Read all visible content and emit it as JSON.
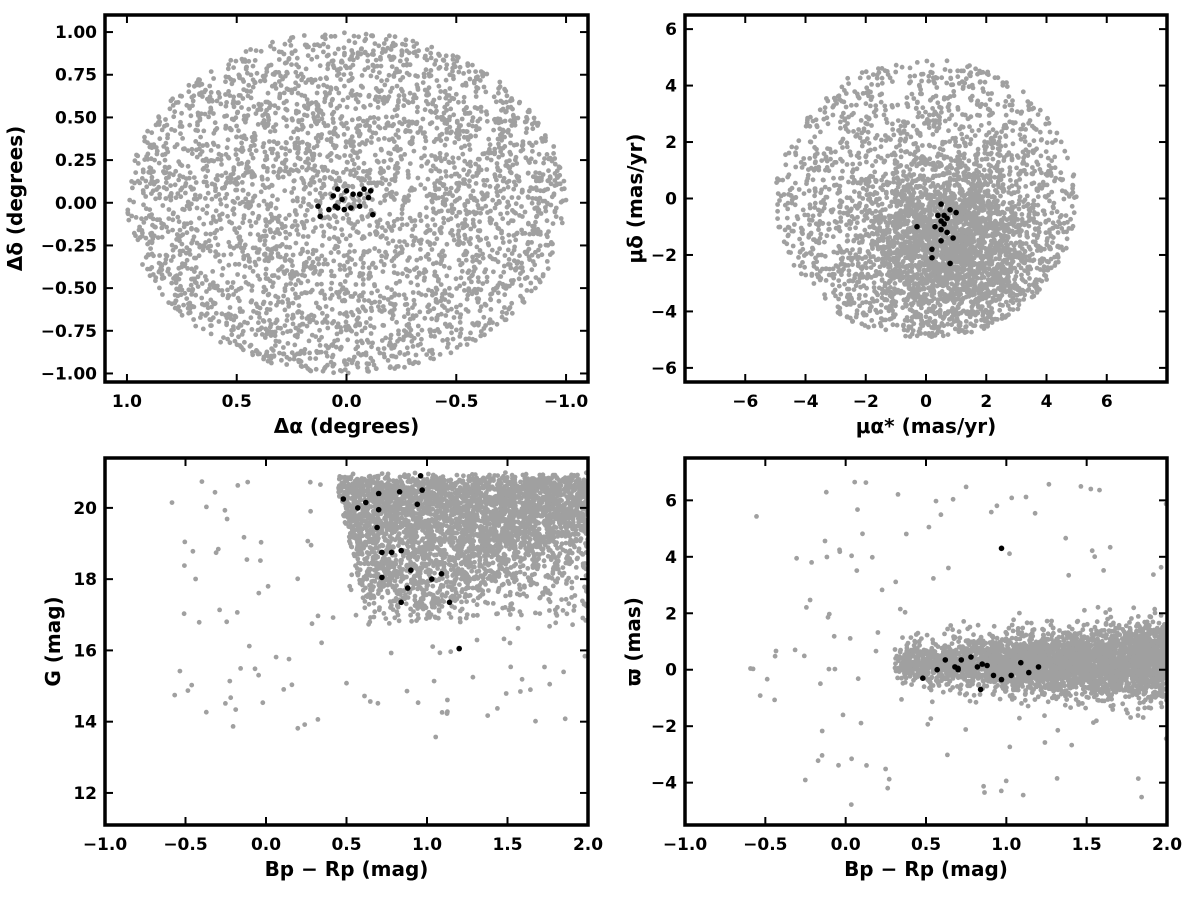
{
  "chart_data": [
    {
      "type": "scatter",
      "xlabel": "Δα (degrees)",
      "ylabel": "Δδ (degrees)",
      "xlim": [
        1.1,
        -1.1
      ],
      "ylim": [
        -1.05,
        1.1
      ],
      "x_reversed": true,
      "x_ticks": [
        1.0,
        0.5,
        0.0,
        -0.5,
        -1.0
      ],
      "x_tick_labels": [
        "1.0",
        "0.5",
        "0.0",
        "−0.5",
        "−1.0"
      ],
      "y_ticks": [
        -1.0,
        -0.75,
        -0.5,
        -0.25,
        0.0,
        0.25,
        0.5,
        0.75,
        1.0
      ],
      "y_tick_labels": [
        "−1.00",
        "−0.75",
        "−0.50",
        "−0.25",
        "0.00",
        "0.25",
        "0.50",
        "0.75",
        "1.00"
      ],
      "grid": false,
      "background_series": {
        "color": "#a0a0a0",
        "distribution": "uniform disk",
        "center": [
          0,
          0
        ],
        "radius": 1.0,
        "count": 3500
      },
      "highlight_series": {
        "color": "#000000",
        "points": [
          [
            0.13,
            -0.02
          ],
          [
            0.12,
            -0.08
          ],
          [
            0.08,
            -0.04
          ],
          [
            0.05,
            -0.02
          ],
          [
            0.04,
            0.08
          ],
          [
            0.04,
            -0.03
          ],
          [
            0.02,
            0.02
          ],
          [
            0.01,
            -0.04
          ],
          [
            0.0,
            0.07
          ],
          [
            -0.02,
            -0.03
          ],
          [
            -0.03,
            0.05
          ],
          [
            -0.06,
            0.05
          ],
          [
            -0.08,
            0.08
          ],
          [
            -0.1,
            0.03
          ],
          [
            -0.11,
            0.07
          ],
          [
            -0.12,
            -0.07
          ],
          [
            -0.06,
            -0.02
          ],
          [
            0.06,
            0.04
          ]
        ]
      }
    },
    {
      "type": "scatter",
      "xlabel": "μα* (mas/yr)",
      "ylabel": "μδ (mas/yr)",
      "xlim": [
        -8,
        8
      ],
      "ylim": [
        -6.5,
        6.5
      ],
      "x_ticks": [
        -6,
        -4,
        -2,
        0,
        2,
        4,
        6
      ],
      "x_tick_labels": [
        "−6",
        "−4",
        "−2",
        "0",
        "2",
        "4",
        "6"
      ],
      "y_ticks": [
        -6,
        -4,
        -2,
        0,
        2,
        4,
        6
      ],
      "y_tick_labels": [
        "−6",
        "−4",
        "−2",
        "0",
        "2",
        "4",
        "6"
      ],
      "grid": false,
      "background_series": {
        "color": "#a0a0a0",
        "distribution": "disk truncated at |μ| < 5, dense core near (0.5, -1)",
        "center": [
          0,
          0
        ],
        "radius": 5.0,
        "count": 4000
      },
      "highlight_series": {
        "color": "#000000",
        "points": [
          [
            0.5,
            -0.2
          ],
          [
            0.4,
            -0.6
          ],
          [
            0.6,
            -0.6
          ],
          [
            0.5,
            -0.8
          ],
          [
            0.7,
            -0.7
          ],
          [
            0.8,
            -0.4
          ],
          [
            1.0,
            -0.5
          ],
          [
            0.3,
            -1.0
          ],
          [
            0.5,
            -1.1
          ],
          [
            0.7,
            -1.2
          ],
          [
            -0.3,
            -1.0
          ],
          [
            0.5,
            -1.5
          ],
          [
            0.9,
            -1.4
          ],
          [
            0.2,
            -1.8
          ],
          [
            0.2,
            -2.1
          ],
          [
            0.8,
            -2.3
          ],
          [
            0.6,
            -0.9
          ]
        ]
      }
    },
    {
      "type": "scatter",
      "xlabel": "Bp − Rp (mag)",
      "ylabel": "G (mag)",
      "xlim": [
        -1.0,
        2.0
      ],
      "ylim": [
        11.1,
        21.4
      ],
      "x_ticks": [
        -1.0,
        -0.5,
        0.0,
        0.5,
        1.0,
        1.5,
        2.0
      ],
      "x_tick_labels": [
        "−1.0",
        "−0.5",
        "0.0",
        "0.5",
        "1.0",
        "1.5",
        "2.0"
      ],
      "y_ticks": [
        12,
        14,
        16,
        18,
        20
      ],
      "y_tick_labels": [
        "12",
        "14",
        "16",
        "18",
        "20"
      ],
      "grid": false,
      "background_series": {
        "color": "#a0a0a0",
        "distribution": "colour-magnitude wedge, faint limit G≈21, bright stars sparse",
        "count": 3800
      },
      "highlight_series": {
        "color": "#000000",
        "points": [
          [
            0.48,
            20.25
          ],
          [
            0.57,
            20.0
          ],
          [
            0.62,
            20.15
          ],
          [
            0.7,
            20.4
          ],
          [
            0.7,
            19.95
          ],
          [
            0.69,
            19.45
          ],
          [
            0.83,
            20.45
          ],
          [
            0.96,
            20.9
          ],
          [
            0.97,
            20.5
          ],
          [
            0.94,
            20.1
          ],
          [
            0.72,
            18.75
          ],
          [
            0.78,
            18.75
          ],
          [
            0.84,
            18.8
          ],
          [
            0.72,
            18.05
          ],
          [
            0.9,
            18.25
          ],
          [
            1.03,
            18.0
          ],
          [
            1.09,
            18.15
          ],
          [
            0.88,
            17.75
          ],
          [
            0.84,
            17.35
          ],
          [
            1.14,
            17.35
          ],
          [
            1.2,
            16.05
          ]
        ]
      }
    },
    {
      "type": "scatter",
      "xlabel": "Bp − Rp (mag)",
      "ylabel": "ϖ (mas)",
      "xlim": [
        -1.0,
        2.0
      ],
      "ylim": [
        -5.5,
        7.5
      ],
      "x_ticks": [
        -1.0,
        -0.5,
        0.0,
        0.5,
        1.0,
        1.5,
        2.0
      ],
      "x_tick_labels": [
        "−1.0",
        "−0.5",
        "0.0",
        "0.5",
        "1.0",
        "1.5",
        "2.0"
      ],
      "y_ticks": [
        -4,
        -2,
        0,
        2,
        4,
        6
      ],
      "y_tick_labels": [
        "−4",
        "−2",
        "0",
        "2",
        "4",
        "6"
      ],
      "grid": false,
      "background_series": {
        "color": "#a0a0a0",
        "distribution": "band around ϖ≈0.3 spreading with colour",
        "count": 3800
      },
      "highlight_series": {
        "color": "#000000",
        "points": [
          [
            0.48,
            -0.3
          ],
          [
            0.57,
            0.0
          ],
          [
            0.62,
            0.35
          ],
          [
            0.68,
            0.1
          ],
          [
            0.7,
            0.05
          ],
          [
            0.72,
            0.35
          ],
          [
            0.78,
            0.45
          ],
          [
            0.82,
            0.1
          ],
          [
            0.85,
            0.2
          ],
          [
            0.88,
            0.15
          ],
          [
            0.92,
            -0.2
          ],
          [
            0.97,
            -0.35
          ],
          [
            1.03,
            -0.2
          ],
          [
            1.09,
            0.25
          ],
          [
            1.14,
            -0.1
          ],
          [
            1.2,
            0.1
          ],
          [
            0.84,
            -0.7
          ],
          [
            0.97,
            4.3
          ],
          [
            0.7,
            0.0
          ]
        ]
      }
    }
  ]
}
